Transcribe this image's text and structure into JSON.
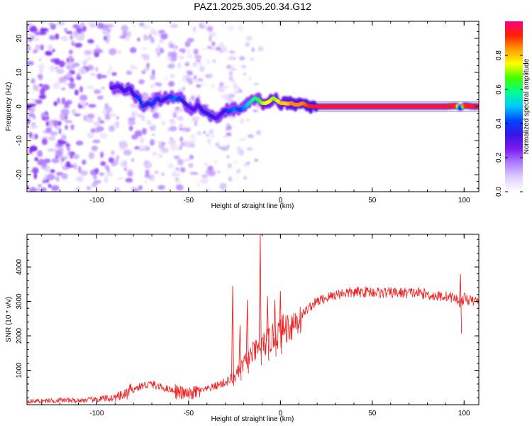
{
  "title": "PAZ1.2025.305.20.34.G12",
  "chart_data": [
    {
      "type": "heatmap",
      "xlabel": "Height of straight line (km)",
      "ylabel": "Frequency (Hz)",
      "xlim": [
        -138,
        108
      ],
      "ylim": [
        -25,
        25
      ],
      "xticks": [
        -100,
        -50,
        0,
        50,
        100
      ],
      "xtick_labels": [
        "-100",
        "-50",
        "0",
        "50",
        "100"
      ],
      "yticks": [
        -20,
        -10,
        0,
        10,
        20
      ],
      "ytick_labels": [
        "-20",
        "-10",
        "0",
        "10",
        "20"
      ],
      "colormap": [
        "#ffffff",
        "#e0d0ff",
        "#b080ff",
        "#7a1cf0",
        "#3a14e8",
        "#0044ff",
        "#00c8ff",
        "#00ff90",
        "#40ff00",
        "#ffff00",
        "#ffa000",
        "#ff2000",
        "#ff007f"
      ],
      "ridge_x": [
        -92,
        -88,
        -85,
        -82,
        -80,
        -77,
        -75,
        -72,
        -70,
        -67,
        -65,
        -62,
        -60,
        -57,
        -55,
        -52,
        -50,
        -47,
        -45,
        -42,
        -40,
        -37,
        -35,
        -33,
        -30,
        -28,
        -25,
        -22,
        -20,
        -18,
        -16,
        -14,
        -12,
        -10,
        -8,
        -6,
        -4,
        -2,
        0,
        2,
        4,
        6,
        8,
        10,
        12,
        15,
        18,
        20,
        30,
        40,
        50,
        60,
        70,
        80,
        90,
        96,
        98,
        100,
        105,
        108
      ],
      "ridge_y": [
        5.5,
        6,
        4.5,
        5.5,
        3.5,
        2.5,
        0,
        1,
        0.5,
        2.5,
        1.5,
        2.5,
        3,
        2,
        2.5,
        1,
        0,
        -1,
        0.5,
        -1.5,
        -2,
        -3,
        -3.5,
        -2.5,
        -1,
        -1.5,
        -0.5,
        -1,
        -0.5,
        0.5,
        1.5,
        2.5,
        2,
        1,
        1,
        1.5,
        2.5,
        1.8,
        1,
        1,
        0.8,
        1,
        0.5,
        0.5,
        1,
        0.2,
        0,
        0,
        0,
        0,
        0,
        0,
        0,
        0,
        0,
        0.2,
        -0.5,
        0.3,
        0,
        0
      ],
      "ridge_amp": [
        0.3,
        0.3,
        0.35,
        0.3,
        0.35,
        0.4,
        0.4,
        0.35,
        0.4,
        0.4,
        0.3,
        0.35,
        0.4,
        0.45,
        0.4,
        0.35,
        0.3,
        0.3,
        0.3,
        0.35,
        0.35,
        0.35,
        0.3,
        0.3,
        0.35,
        0.4,
        0.45,
        0.4,
        0.45,
        0.5,
        0.55,
        0.6,
        0.6,
        0.7,
        0.75,
        0.75,
        0.7,
        0.7,
        0.8,
        0.8,
        0.8,
        0.85,
        0.85,
        0.85,
        0.85,
        0.9,
        0.95,
        0.95,
        0.95,
        0.95,
        0.95,
        0.95,
        0.95,
        0.95,
        0.95,
        0.9,
        0.3,
        0.9,
        0.95,
        0.95
      ]
    },
    {
      "type": "colorbar",
      "label": "Normalized spectral amplitude",
      "ticks": [
        0.0,
        0.2,
        0.4,
        0.6,
        0.8
      ],
      "tick_labels": [
        "0.0",
        "0.2",
        "0.4",
        "0.6",
        "0.8"
      ],
      "range": [
        0,
        1
      ]
    },
    {
      "type": "line",
      "xlabel": "Height of straight line (km)",
      "ylabel": "SNR (10 * v/v)",
      "xlim": [
        -138,
        108
      ],
      "ylim": [
        0,
        4950
      ],
      "xticks": [
        -100,
        -50,
        0,
        50,
        100
      ],
      "xtick_labels": [
        "-100",
        "-50",
        "0",
        "50",
        "100"
      ],
      "yticks": [
        1000,
        2000,
        3000,
        4000
      ],
      "ytick_labels": [
        "1000",
        "2000",
        "3000",
        "4000"
      ],
      "series": [
        {
          "name": "SNR",
          "color": "#ee2222",
          "x": [
            -138,
            -130,
            -120,
            -110,
            -100,
            -95,
            -90,
            -85,
            -80,
            -75,
            -70,
            -65,
            -60,
            -55,
            -50,
            -45,
            -40,
            -35,
            -30,
            -25,
            -22,
            -20,
            -18,
            -15,
            -12,
            -10,
            -8,
            -5,
            -3,
            0,
            3,
            5,
            8,
            10,
            15,
            20,
            25,
            30,
            35,
            40,
            45,
            50,
            55,
            60,
            65,
            70,
            75,
            80,
            85,
            90,
            95,
            98,
            100,
            105,
            108
          ],
          "y": [
            100,
            110,
            130,
            120,
            150,
            180,
            200,
            280,
            450,
            550,
            600,
            500,
            450,
            350,
            300,
            380,
            450,
            550,
            650,
            800,
            1000,
            1200,
            1300,
            1500,
            1600,
            1700,
            1800,
            1900,
            2000,
            2100,
            2250,
            2300,
            2400,
            2500,
            2800,
            3000,
            3100,
            3200,
            3250,
            3250,
            3280,
            3280,
            3250,
            3250,
            3250,
            3250,
            3250,
            3200,
            3150,
            3150,
            3100,
            2950,
            3100,
            3000,
            3050
          ],
          "spikes": [
            {
              "x": -26,
              "y": 3450
            },
            {
              "x": -22,
              "y": 2300
            },
            {
              "x": -18,
              "y": 3050
            },
            {
              "x": -11,
              "y": 4950
            },
            {
              "x": -7,
              "y": 3150
            },
            {
              "x": -3,
              "y": 3050
            },
            {
              "x": 0,
              "y": 3300
            },
            {
              "x": 98,
              "y": 3800
            }
          ]
        }
      ]
    }
  ]
}
